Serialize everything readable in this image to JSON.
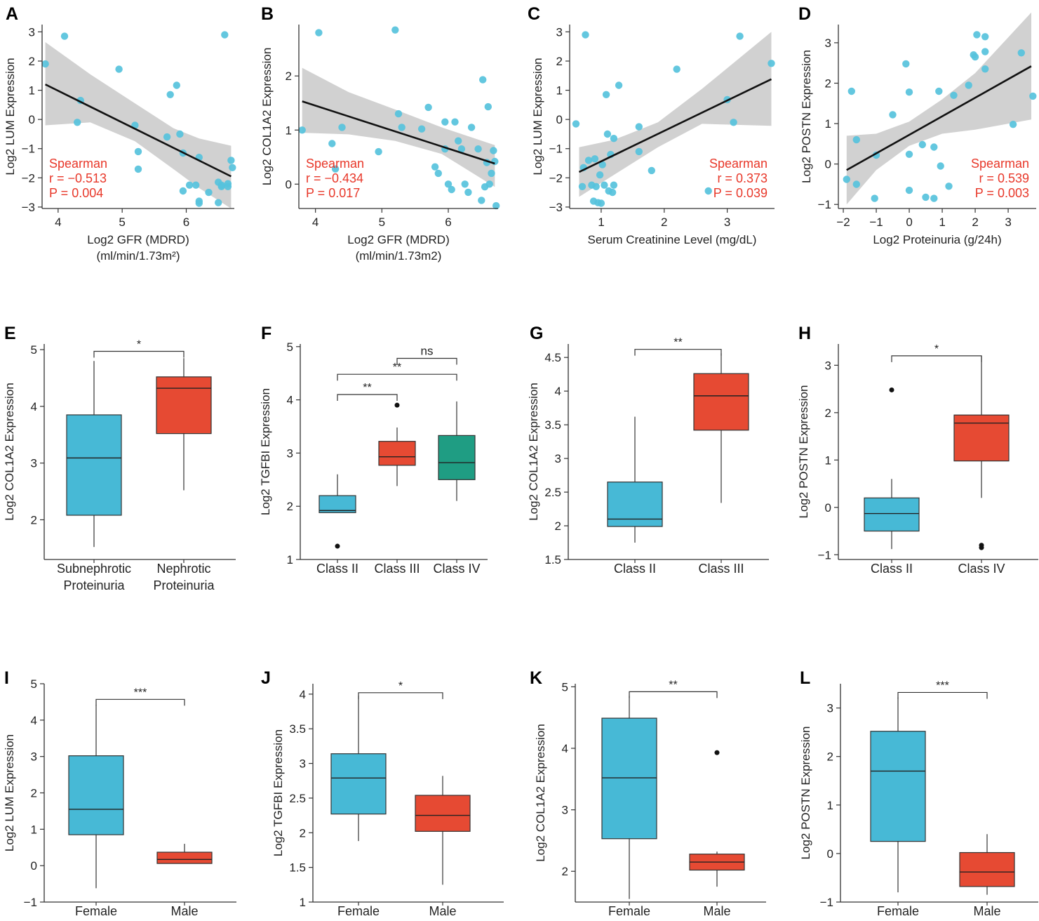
{
  "colors": {
    "point": "#56c2dc",
    "band": "#c9c9c9",
    "line": "#111111",
    "stat": "#e8382a",
    "blue": "#47b9d6",
    "red": "#e64a33",
    "green": "#1f9d83"
  },
  "chart_data": [
    {
      "panel": "A",
      "type": "scatter",
      "xlabel": "Log2 GFR (MDRD)",
      "xlabel2": "(ml/min/1.73m²)",
      "ylabel": "Log2 LUM Expression",
      "xlim": [
        3.75,
        6.75
      ],
      "ylim": [
        -3.05,
        3.25
      ],
      "xticks": [
        4,
        5,
        6
      ],
      "yticks": [
        -3,
        -2,
        -1,
        0,
        1,
        2,
        3
      ],
      "points": [
        [
          3.8,
          1.9
        ],
        [
          4.1,
          2.85
        ],
        [
          4.3,
          -0.1
        ],
        [
          4.35,
          0.65
        ],
        [
          4.95,
          1.72
        ],
        [
          5.2,
          -0.2
        ],
        [
          5.25,
          -1.1
        ],
        [
          5.25,
          -1.7
        ],
        [
          5.7,
          -0.6
        ],
        [
          5.75,
          0.85
        ],
        [
          5.85,
          1.17
        ],
        [
          5.9,
          -0.5
        ],
        [
          5.95,
          -1.15
        ],
        [
          5.95,
          -2.45
        ],
        [
          6.05,
          -2.25
        ],
        [
          6.15,
          -2.25
        ],
        [
          6.2,
          -1.3
        ],
        [
          6.2,
          -2.8
        ],
        [
          6.2,
          -2.87
        ],
        [
          6.35,
          -2.5
        ],
        [
          6.5,
          -2.85
        ],
        [
          6.5,
          -2.15
        ],
        [
          6.55,
          -2.25
        ],
        [
          6.55,
          -2.3
        ],
        [
          6.6,
          2.9
        ],
        [
          6.65,
          -2.3
        ],
        [
          6.65,
          -2.2
        ],
        [
          6.7,
          -1.4
        ],
        [
          6.72,
          -1.65
        ]
      ],
      "fit": {
        "x0": 3.8,
        "y0": 1.2,
        "x1": 6.7,
        "y1": -1.95
      },
      "band": [
        [
          3.8,
          2.65,
          -0.2
        ],
        [
          4.5,
          1.55,
          -0.1
        ],
        [
          5.2,
          0.55,
          -0.75
        ],
        [
          5.8,
          -0.3,
          -1.7
        ],
        [
          6.2,
          -0.65,
          -2.35
        ],
        [
          6.7,
          -0.9,
          -3.05
        ]
      ],
      "stats": [
        "Spearman",
        "r = −0.513",
        "P = 0.004"
      ],
      "stats_pos": "bottom-left"
    },
    {
      "panel": "B",
      "type": "scatter",
      "xlabel": "Log2 GFR (MDRD)",
      "xlabel2": "(ml/min/1.73m2)",
      "ylabel": "Log2 COL1A2 Expression",
      "xlim": [
        3.75,
        6.75
      ],
      "ylim": [
        -0.45,
        2.95
      ],
      "xticks": [
        4,
        5,
        6
      ],
      "yticks": [
        0,
        1,
        2
      ],
      "points": [
        [
          3.8,
          1.0
        ],
        [
          4.05,
          2.8
        ],
        [
          4.25,
          0.75
        ],
        [
          4.3,
          0.28
        ],
        [
          4.4,
          1.05
        ],
        [
          4.95,
          0.6
        ],
        [
          5.2,
          2.85
        ],
        [
          5.25,
          1.3
        ],
        [
          5.3,
          1.05
        ],
        [
          5.6,
          1.02
        ],
        [
          5.7,
          1.42
        ],
        [
          5.8,
          0.32
        ],
        [
          5.85,
          0.2
        ],
        [
          5.95,
          1.15
        ],
        [
          5.95,
          0.65
        ],
        [
          6.0,
          0.0
        ],
        [
          6.05,
          -0.1
        ],
        [
          6.1,
          1.15
        ],
        [
          6.15,
          0.8
        ],
        [
          6.2,
          0.65
        ],
        [
          6.25,
          0.0
        ],
        [
          6.3,
          -0.15
        ],
        [
          6.35,
          1.05
        ],
        [
          6.45,
          0.65
        ],
        [
          6.5,
          -0.3
        ],
        [
          6.52,
          1.93
        ],
        [
          6.55,
          -0.05
        ],
        [
          6.58,
          0.4
        ],
        [
          6.6,
          1.43
        ],
        [
          6.62,
          0.0
        ],
        [
          6.65,
          0.2
        ],
        [
          6.68,
          0.62
        ],
        [
          6.7,
          0.42
        ],
        [
          6.72,
          -0.4
        ]
      ],
      "fit": {
        "x0": 3.8,
        "y0": 1.53,
        "x1": 6.7,
        "y1": 0.38
      },
      "band": [
        [
          3.8,
          2.15,
          0.95
        ],
        [
          4.5,
          1.7,
          0.92
        ],
        [
          5.2,
          1.38,
          0.8
        ],
        [
          5.9,
          1.05,
          0.56
        ],
        [
          6.7,
          0.72,
          -0.05
        ]
      ],
      "stats": [
        "Spearman",
        "r = −0.434",
        "P = 0.017"
      ],
      "stats_pos": "bottom-left"
    },
    {
      "panel": "C",
      "type": "scatter",
      "xlabel": "Serum Creatinine Level (mg/dL)",
      "ylabel": "Log2 LUM Expression",
      "xlim": [
        0.5,
        3.75
      ],
      "ylim": [
        -3.05,
        3.25
      ],
      "xticks": [
        1,
        2,
        3
      ],
      "yticks": [
        -3,
        -2,
        -1,
        0,
        1,
        2,
        3
      ],
      "points": [
        [
          0.6,
          -0.15
        ],
        [
          0.7,
          -2.3
        ],
        [
          0.72,
          -1.65
        ],
        [
          0.75,
          2.9
        ],
        [
          0.8,
          -1.4
        ],
        [
          0.85,
          -2.25
        ],
        [
          0.88,
          -2.8
        ],
        [
          0.9,
          -1.35
        ],
        [
          0.92,
          -2.3
        ],
        [
          0.95,
          -2.85
        ],
        [
          0.98,
          -1.9
        ],
        [
          1.0,
          -2.87
        ],
        [
          1.02,
          -1.55
        ],
        [
          1.05,
          -2.25
        ],
        [
          1.08,
          0.85
        ],
        [
          1.1,
          -0.5
        ],
        [
          1.12,
          -2.45
        ],
        [
          1.15,
          -1.2
        ],
        [
          1.18,
          -2.5
        ],
        [
          1.2,
          -0.65
        ],
        [
          1.2,
          -2.25
        ],
        [
          1.28,
          1.17
        ],
        [
          1.6,
          -0.25
        ],
        [
          1.6,
          -1.1
        ],
        [
          1.8,
          -1.75
        ],
        [
          2.2,
          1.72
        ],
        [
          2.7,
          -2.45
        ],
        [
          3.0,
          0.68
        ],
        [
          3.1,
          -0.1
        ],
        [
          3.2,
          2.85
        ],
        [
          3.7,
          1.92
        ]
      ],
      "fit": {
        "x0": 0.65,
        "y0": -1.8,
        "x1": 3.7,
        "y1": 1.38
      },
      "band": [
        [
          0.65,
          -0.95,
          -2.65
        ],
        [
          1.2,
          -0.7,
          -1.9
        ],
        [
          1.9,
          -0.1,
          -0.95
        ],
        [
          2.6,
          1.05,
          -0.15
        ],
        [
          3.7,
          3.0,
          -0.22
        ]
      ],
      "stats": [
        "Spearman",
        "r = 0.373",
        "P = 0.039"
      ],
      "stats_pos": "bottom-right"
    },
    {
      "panel": "D",
      "type": "scatter",
      "xlabel": "Log2 Proteinuria (g/24h)",
      "ylabel": "Log2 POSTN Expression",
      "xlim": [
        -2.15,
        3.85
      ],
      "ylim": [
        -1.1,
        3.45
      ],
      "xticks": [
        -2,
        -1,
        0,
        1,
        2,
        3
      ],
      "yticks": [
        -1,
        0,
        1,
        2,
        3
      ],
      "points": [
        [
          -1.9,
          -0.38
        ],
        [
          -1.75,
          1.8
        ],
        [
          -1.6,
          0.6
        ],
        [
          -1.6,
          -0.5
        ],
        [
          -1.05,
          -0.85
        ],
        [
          -1.0,
          0.22
        ],
        [
          -0.5,
          1.22
        ],
        [
          -0.1,
          2.48
        ],
        [
          0.0,
          1.78
        ],
        [
          0.0,
          0.24
        ],
        [
          0.0,
          -0.65
        ],
        [
          0.4,
          0.48
        ],
        [
          0.5,
          -0.82
        ],
        [
          0.75,
          0.42
        ],
        [
          0.75,
          -0.85
        ],
        [
          0.9,
          1.8
        ],
        [
          0.95,
          -0.05
        ],
        [
          1.2,
          -0.55
        ],
        [
          1.35,
          1.7
        ],
        [
          1.8,
          1.95
        ],
        [
          1.95,
          2.7
        ],
        [
          2.0,
          2.65
        ],
        [
          2.05,
          3.2
        ],
        [
          2.3,
          3.15
        ],
        [
          2.3,
          2.78
        ],
        [
          2.3,
          2.35
        ],
        [
          3.15,
          0.98
        ],
        [
          3.4,
          2.75
        ],
        [
          3.75,
          1.68
        ]
      ],
      "fit": {
        "x0": -1.9,
        "y0": -0.15,
        "x1": 3.7,
        "y1": 2.42
      },
      "band": [
        [
          -1.9,
          0.7,
          -1.0
        ],
        [
          -1.0,
          0.75,
          -0.15
        ],
        [
          0.0,
          1.05,
          0.45
        ],
        [
          1.0,
          1.6,
          0.75
        ],
        [
          2.0,
          2.25,
          0.85
        ],
        [
          3.7,
          3.75,
          1.1
        ]
      ],
      "stats": [
        "Spearman",
        "r = 0.539",
        "P = 0.003"
      ],
      "stats_pos": "bottom-right"
    },
    {
      "panel": "E",
      "type": "box",
      "ylabel": "Log2 COL1A2 Expression",
      "ylim": [
        1.3,
        5.1
      ],
      "yticks": [
        2,
        3,
        4,
        5
      ],
      "boxes": [
        {
          "label": [
            "Subnephrotic",
            "Proteinuria"
          ],
          "color": "blue",
          "q1": 2.08,
          "median": 3.09,
          "q3": 3.85,
          "whisker_low": 1.52,
          "whisker_high": 4.8,
          "outliers": []
        },
        {
          "label": [
            "Nephrotic",
            "Proteinuria"
          ],
          "color": "red",
          "q1": 3.52,
          "median": 4.32,
          "q3": 4.52,
          "whisker_low": 2.52,
          "whisker_high": 4.85,
          "outliers": []
        }
      ],
      "brackets": [
        {
          "from": 0,
          "to": 1,
          "y": 4.97,
          "label": "*"
        }
      ]
    },
    {
      "panel": "F",
      "type": "box",
      "ylabel": "Log2 TGFBI Expression",
      "ylim": [
        1.0,
        5.05
      ],
      "yticks": [
        1,
        2,
        3,
        4,
        5
      ],
      "boxes": [
        {
          "label": [
            "Class II"
          ],
          "color": "blue",
          "q1": 1.88,
          "median": 1.92,
          "q3": 2.2,
          "whisker_low": 1.88,
          "whisker_high": 2.6,
          "outliers": [
            1.25
          ]
        },
        {
          "label": [
            "Class III"
          ],
          "color": "red",
          "q1": 2.77,
          "median": 2.93,
          "q3": 3.22,
          "whisker_low": 2.38,
          "whisker_high": 3.48,
          "outliers": [
            3.9
          ]
        },
        {
          "label": [
            "Class IV"
          ],
          "color": "green",
          "q1": 2.5,
          "median": 2.82,
          "q3": 3.33,
          "whisker_low": 2.1,
          "whisker_high": 3.97,
          "outliers": []
        }
      ],
      "brackets": [
        {
          "from": 0,
          "to": 1,
          "y": 4.1,
          "label": "**"
        },
        {
          "from": 0,
          "to": 2,
          "y": 4.48,
          "label": "**"
        },
        {
          "from": 1,
          "to": 2,
          "y": 4.78,
          "label": "ns"
        }
      ]
    },
    {
      "panel": "G",
      "type": "box",
      "ylabel": "Log2 COL1A2 Expression",
      "ylim": [
        1.5,
        4.7
      ],
      "yticks": [
        1.5,
        2.0,
        2.5,
        3.0,
        3.5,
        4.0,
        4.5
      ],
      "boxes": [
        {
          "label": [
            "Class II"
          ],
          "color": "blue",
          "q1": 1.99,
          "median": 2.1,
          "q3": 2.65,
          "whisker_low": 1.75,
          "whisker_high": 3.62,
          "outliers": []
        },
        {
          "label": [
            "Class III"
          ],
          "color": "red",
          "q1": 3.42,
          "median": 3.93,
          "q3": 4.26,
          "whisker_low": 2.34,
          "whisker_high": 4.56,
          "outliers": []
        }
      ],
      "brackets": [
        {
          "from": 0,
          "to": 1,
          "y": 4.62,
          "label": "**"
        }
      ]
    },
    {
      "panel": "H",
      "type": "box",
      "ylabel": "Log2 POSTN Expression",
      "ylim": [
        -1.1,
        3.45
      ],
      "yticks": [
        -1,
        0,
        1,
        2,
        3
      ],
      "boxes": [
        {
          "label": [
            "Class II"
          ],
          "color": "blue",
          "q1": -0.5,
          "median": -0.13,
          "q3": 0.2,
          "whisker_low": -0.88,
          "whisker_high": 0.6,
          "outliers": [
            2.48
          ]
        },
        {
          "label": [
            "Class IV"
          ],
          "color": "red",
          "q1": 0.98,
          "median": 1.78,
          "q3": 1.95,
          "whisker_low": 0.2,
          "whisker_high": 3.2,
          "outliers": [
            -0.8,
            -0.85
          ]
        }
      ],
      "brackets": [
        {
          "from": 0,
          "to": 1,
          "y": 3.2,
          "label": "*"
        }
      ]
    },
    {
      "panel": "I",
      "type": "box",
      "ylabel": "Log2 LUM Expression",
      "ylim": [
        -1.0,
        5.0
      ],
      "yticks": [
        -1,
        0,
        1,
        2,
        3,
        4,
        5
      ],
      "boxes": [
        {
          "label": [
            "Female"
          ],
          "color": "blue",
          "q1": 0.85,
          "median": 1.55,
          "q3": 3.02,
          "whisker_low": -0.62,
          "whisker_high": 4.42,
          "outliers": []
        },
        {
          "label": [
            "Male"
          ],
          "color": "red",
          "q1": 0.06,
          "median": 0.17,
          "q3": 0.37,
          "whisker_low": 0.06,
          "whisker_high": 0.6,
          "outliers": []
        }
      ],
      "brackets": [
        {
          "from": 0,
          "to": 1,
          "y": 4.57,
          "label": "***"
        }
      ]
    },
    {
      "panel": "J",
      "type": "box",
      "ylabel": "Log2 TGFBI Expression",
      "ylim": [
        1.0,
        4.15
      ],
      "yticks": [
        1.0,
        1.5,
        2.0,
        2.5,
        3.0,
        3.5,
        4.0
      ],
      "boxes": [
        {
          "label": [
            "Female"
          ],
          "color": "blue",
          "q1": 2.27,
          "median": 2.79,
          "q3": 3.14,
          "whisker_low": 1.88,
          "whisker_high": 3.98,
          "outliers": []
        },
        {
          "label": [
            "Male"
          ],
          "color": "red",
          "q1": 2.02,
          "median": 2.25,
          "q3": 2.54,
          "whisker_low": 1.25,
          "whisker_high": 2.82,
          "outliers": []
        }
      ],
      "brackets": [
        {
          "from": 0,
          "to": 1,
          "y": 4.02,
          "label": "*"
        }
      ]
    },
    {
      "panel": "K",
      "type": "box",
      "ylabel": "Log2 COL1A2 Expression",
      "ylim": [
        1.5,
        5.05
      ],
      "yticks": [
        2,
        3,
        4,
        5
      ],
      "boxes": [
        {
          "label": [
            "Female"
          ],
          "color": "blue",
          "q1": 2.53,
          "median": 3.52,
          "q3": 4.49,
          "whisker_low": 1.55,
          "whisker_high": 4.85,
          "outliers": []
        },
        {
          "label": [
            "Male"
          ],
          "color": "red",
          "q1": 2.02,
          "median": 2.15,
          "q3": 2.28,
          "whisker_low": 1.75,
          "whisker_high": 2.32,
          "outliers": [
            3.93
          ]
        }
      ],
      "brackets": [
        {
          "from": 0,
          "to": 1,
          "y": 4.92,
          "label": "**"
        }
      ]
    },
    {
      "panel": "L",
      "type": "box",
      "ylabel": "Log2 POSTN Expression",
      "ylim": [
        -1.0,
        3.5
      ],
      "yticks": [
        -1,
        0,
        1,
        2,
        3
      ],
      "boxes": [
        {
          "label": [
            "Female"
          ],
          "color": "blue",
          "q1": 0.25,
          "median": 1.7,
          "q3": 2.52,
          "whisker_low": -0.8,
          "whisker_high": 3.22,
          "outliers": []
        },
        {
          "label": [
            "Male"
          ],
          "color": "red",
          "q1": -0.68,
          "median": -0.38,
          "q3": 0.02,
          "whisker_low": -0.85,
          "whisker_high": 0.4,
          "outliers": []
        }
      ],
      "brackets": [
        {
          "from": 0,
          "to": 1,
          "y": 3.32,
          "label": "***"
        }
      ]
    }
  ]
}
